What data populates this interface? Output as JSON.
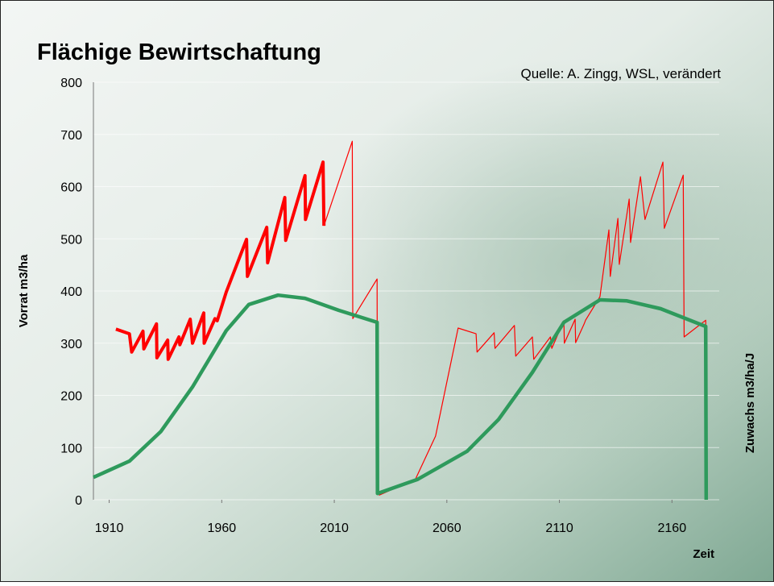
{
  "chart_data": {
    "type": "line",
    "title": "Flächige Bewirtschaftung",
    "annotation": "Quelle: A. Zingg, WSL, verändert",
    "y_label": "Vorrat m3/ha",
    "y2_label": "Zuwachs m3/ha/J",
    "x_label": "Zeit",
    "xlim": [
      1903,
      2181
    ],
    "xticks": [
      1910,
      1960,
      2010,
      2060,
      2110,
      2160
    ],
    "ylim": [
      0,
      800
    ],
    "yticks": [
      0,
      100,
      200,
      300,
      400,
      500,
      600,
      700,
      800
    ],
    "grid": true,
    "series": [
      {
        "color": "#ff0000",
        "linewidth": 4,
        "x": [
          1913,
          1919,
          1920,
          1925,
          1925.4,
          1931,
          1931.2,
          1936,
          1936.2,
          1941,
          1941.4,
          1946,
          1947,
          1952,
          1952.2,
          1957,
          1958,
          1962,
          1971,
          1971.4,
          1980,
          1980.4,
          1988,
          1988.4,
          1997,
          1997.2,
          2005,
          2005.4
        ],
        "values": [
          327,
          318,
          283,
          323,
          289,
          337,
          272,
          306,
          269,
          312,
          297,
          346,
          300,
          358,
          300,
          347,
          343,
          398,
          499,
          428,
          522,
          454,
          579,
          497,
          621,
          537,
          647,
          525
        ]
      },
      {
        "color": "#ff0000",
        "linewidth": 1.2,
        "x": [
          2005.4,
          2018,
          2018.2,
          2029,
          2029.2,
          2030,
          2046,
          2055,
          2065,
          2073,
          2073.4,
          2081,
          2081.4,
          2090,
          2090.6,
          2098,
          2098.6,
          2106,
          2106.6,
          2112,
          2112.2,
          2117,
          2117.2,
          2121,
          2121.6,
          2128,
          2132,
          2132.6,
          2136,
          2136.6,
          2141,
          2141.6,
          2146,
          2148,
          2156,
          2156.6,
          2165,
          2165.4,
          2175,
          2175.6
        ],
        "values": [
          525,
          687,
          347,
          423,
          12,
          9,
          39,
          122,
          329,
          318,
          283,
          320,
          290,
          334,
          275,
          312,
          269,
          312,
          290,
          343,
          300,
          346,
          301,
          337,
          344,
          389,
          517,
          428,
          539,
          451,
          576,
          493,
          619,
          537,
          647,
          520,
          622,
          312,
          344,
          0
        ]
      },
      {
        "color": "#2e9a5c",
        "linewidth": 4.5,
        "x": [
          1903,
          1919,
          1933,
          1947,
          1962,
          1972,
          1985,
          1997,
          2012,
          2029,
          2029.2,
          2047,
          2069,
          2083,
          2098,
          2112,
          2128,
          2140,
          2155,
          2175,
          2175.2
        ],
        "values": [
          43,
          74,
          131,
          216,
          324,
          374,
          392,
          386,
          363,
          340,
          12,
          39,
          93,
          154,
          244,
          340,
          383,
          381,
          366,
          332,
          0
        ]
      }
    ]
  }
}
